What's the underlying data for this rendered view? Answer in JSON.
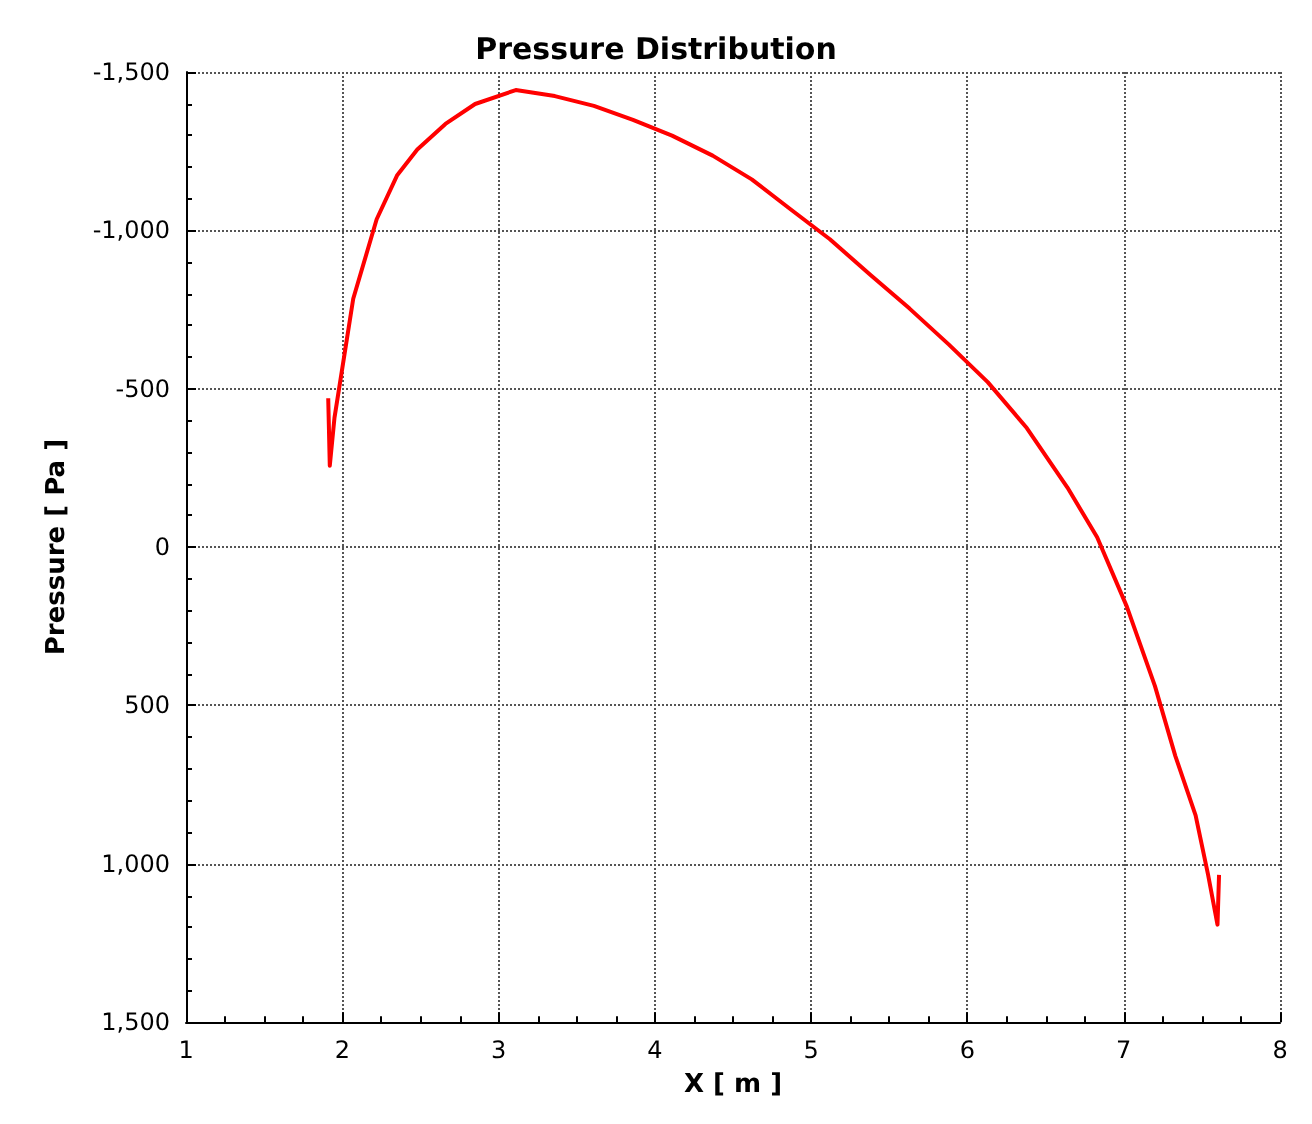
{
  "chart_data": {
    "type": "line",
    "title": "Pressure Distribution",
    "xlabel": "X [ m ]",
    "ylabel": "Pressure [ Pa ]",
    "series": [
      {
        "color": "#ff0000",
        "x": [
          1.91,
          1.92,
          1.95,
          2.01,
          2.07,
          2.22,
          2.35,
          2.48,
          2.66,
          2.85,
          3.11,
          3.36,
          3.61,
          3.86,
          4.11,
          4.37,
          4.62,
          4.87,
          5.12,
          5.38,
          5.63,
          5.88,
          6.13,
          6.38,
          6.64,
          6.83,
          7.02,
          7.2,
          7.33,
          7.46,
          7.54,
          7.6,
          7.61
        ],
        "values": [
          -470,
          -257,
          -408,
          -596,
          -784,
          -1035,
          -1173,
          -1255,
          -1336,
          -1399,
          -1443,
          -1424,
          -1393,
          -1349,
          -1299,
          -1236,
          -1161,
          -1066,
          -972,
          -859,
          -753,
          -640,
          -521,
          -376,
          -188,
          -31,
          188,
          439,
          659,
          847,
          1035,
          1192,
          1035
        ]
      }
    ],
    "xlim": [
      1,
      8
    ],
    "xticks": [
      1,
      2,
      3,
      4,
      5,
      6,
      7,
      8
    ],
    "ylim": [
      1500,
      -1500
    ],
    "yticks": [
      {
        "value": -1500,
        "label": "-1,500"
      },
      {
        "value": -1000,
        "label": "-1,000"
      },
      {
        "value": -500,
        "label": "-500"
      },
      {
        "value": 0,
        "label": "0"
      },
      {
        "value": 500,
        "label": "500"
      },
      {
        "value": 1000,
        "label": "1,000"
      },
      {
        "value": 1500,
        "label": "1,500"
      }
    ],
    "grid": true,
    "marker": "none",
    "line_style": "solid"
  }
}
